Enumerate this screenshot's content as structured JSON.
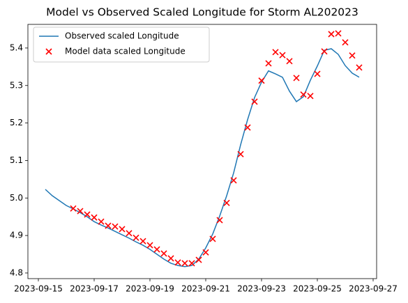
{
  "chart_data": {
    "type": "line",
    "title": "Model vs Observed Scaled Longitude for Storm AL202023",
    "xlim": [
      "2023-09-14T15:00:00Z",
      "2023-09-27T03:00:00Z"
    ],
    "xticks": [
      "2023-09-15",
      "2023-09-17",
      "2023-09-19",
      "2023-09-21",
      "2023-09-23",
      "2023-09-25",
      "2023-09-27"
    ],
    "ylim": [
      4.785,
      5.463
    ],
    "yticks": [
      4.8,
      4.9,
      {
        "value": 5,
        "label": "5.0"
      },
      5.1,
      5.2,
      5.3,
      5.4
    ],
    "legend": "upper left",
    "series": [
      {
        "name": "Observed scaled Longitude",
        "type": "line",
        "color": "#1f77b4",
        "x": [
          "2023-09-15T06:00:00Z",
          "2023-09-15T12:00:00Z",
          "2023-09-15T18:00:00Z",
          "2023-09-16T00:00:00Z",
          "2023-09-16T06:00:00Z",
          "2023-09-16T12:00:00Z",
          "2023-09-16T18:00:00Z",
          "2023-09-17T00:00:00Z",
          "2023-09-17T06:00:00Z",
          "2023-09-17T12:00:00Z",
          "2023-09-17T18:00:00Z",
          "2023-09-18T00:00:00Z",
          "2023-09-18T06:00:00Z",
          "2023-09-18T12:00:00Z",
          "2023-09-18T18:00:00Z",
          "2023-09-19T00:00:00Z",
          "2023-09-19T06:00:00Z",
          "2023-09-19T12:00:00Z",
          "2023-09-19T18:00:00Z",
          "2023-09-20T00:00:00Z",
          "2023-09-20T06:00:00Z",
          "2023-09-20T12:00:00Z",
          "2023-09-20T18:00:00Z",
          "2023-09-21T00:00:00Z",
          "2023-09-21T06:00:00Z",
          "2023-09-21T12:00:00Z",
          "2023-09-21T18:00:00Z",
          "2023-09-22T00:00:00Z",
          "2023-09-22T06:00:00Z",
          "2023-09-22T12:00:00Z",
          "2023-09-22T18:00:00Z",
          "2023-09-23T00:00:00Z",
          "2023-09-23T06:00:00Z",
          "2023-09-23T12:00:00Z",
          "2023-09-23T18:00:00Z",
          "2023-09-24T00:00:00Z",
          "2023-09-24T06:00:00Z",
          "2023-09-24T12:00:00Z",
          "2023-09-24T18:00:00Z",
          "2023-09-25T00:00:00Z",
          "2023-09-25T06:00:00Z",
          "2023-09-25T12:00:00Z",
          "2023-09-25T18:00:00Z",
          "2023-09-26T00:00:00Z",
          "2023-09-26T06:00:00Z",
          "2023-09-26T12:00:00Z"
        ],
        "values": [
          5.023,
          5.006,
          4.993,
          4.98,
          4.971,
          4.961,
          4.95,
          4.937,
          4.928,
          4.92,
          4.911,
          4.902,
          4.893,
          4.883,
          4.874,
          4.863,
          4.85,
          4.837,
          4.826,
          4.82,
          4.817,
          4.82,
          4.837,
          4.867,
          4.904,
          4.952,
          5.006,
          5.067,
          5.142,
          5.209,
          5.268,
          5.309,
          5.339,
          5.331,
          5.322,
          5.285,
          5.257,
          5.27,
          5.314,
          5.352,
          5.394,
          5.398,
          5.383,
          5.353,
          5.333,
          5.322
        ]
      },
      {
        "name": "Model data scaled Longitude",
        "type": "scatter",
        "marker": "x",
        "color": "#ff0000",
        "x": [
          "2023-09-16T06:00:00Z",
          "2023-09-16T12:00:00Z",
          "2023-09-16T18:00:00Z",
          "2023-09-17T00:00:00Z",
          "2023-09-17T06:00:00Z",
          "2023-09-17T12:00:00Z",
          "2023-09-17T18:00:00Z",
          "2023-09-18T00:00:00Z",
          "2023-09-18T06:00:00Z",
          "2023-09-18T12:00:00Z",
          "2023-09-18T18:00:00Z",
          "2023-09-19T00:00:00Z",
          "2023-09-19T06:00:00Z",
          "2023-09-19T12:00:00Z",
          "2023-09-19T18:00:00Z",
          "2023-09-20T00:00:00Z",
          "2023-09-20T06:00:00Z",
          "2023-09-20T12:00:00Z",
          "2023-09-20T18:00:00Z",
          "2023-09-21T00:00:00Z",
          "2023-09-21T06:00:00Z",
          "2023-09-21T12:00:00Z",
          "2023-09-21T18:00:00Z",
          "2023-09-22T00:00:00Z",
          "2023-09-22T06:00:00Z",
          "2023-09-22T12:00:00Z",
          "2023-09-22T18:00:00Z",
          "2023-09-23T00:00:00Z",
          "2023-09-23T06:00:00Z",
          "2023-09-23T12:00:00Z",
          "2023-09-23T18:00:00Z",
          "2023-09-24T00:00:00Z",
          "2023-09-24T06:00:00Z",
          "2023-09-24T12:00:00Z",
          "2023-09-24T18:00:00Z",
          "2023-09-25T00:00:00Z",
          "2023-09-25T06:00:00Z",
          "2023-09-25T12:00:00Z",
          "2023-09-25T18:00:00Z",
          "2023-09-26T00:00:00Z",
          "2023-09-26T06:00:00Z",
          "2023-09-26T12:00:00Z"
        ],
        "values": [
          4.972,
          4.965,
          4.956,
          4.948,
          4.937,
          4.926,
          4.924,
          4.917,
          4.906,
          4.894,
          4.885,
          4.874,
          4.863,
          4.852,
          4.839,
          4.828,
          4.826,
          4.826,
          4.835,
          4.855,
          4.891,
          4.941,
          4.987,
          5.047,
          5.117,
          5.188,
          5.257,
          5.313,
          5.359,
          5.389,
          5.381,
          5.365,
          5.32,
          5.276,
          5.272,
          5.331,
          5.391,
          5.437,
          5.439,
          5.415,
          5.38,
          5.348
        ]
      }
    ]
  }
}
